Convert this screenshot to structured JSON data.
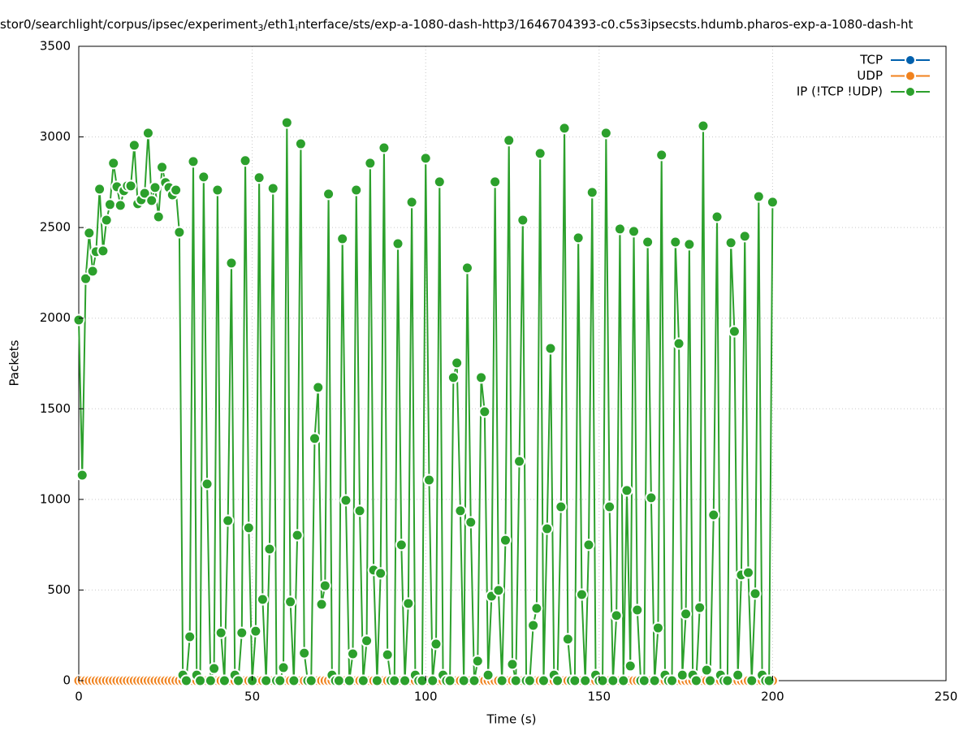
{
  "chart_data": {
    "type": "line",
    "title": [
      "stor0/searchlight/corpus/ipsec/experiment",
      "3",
      "/eth1",
      "i",
      "nterface/sts/exp-a-1080-dash-http3/1646704393-c0.c5s3ipsecsts.hdumb.pharos-exp-a-1080-dash-ht"
    ],
    "x_label": "Time (s)",
    "y_label": "Packets",
    "xlim": [
      0,
      250
    ],
    "xticks": [
      0,
      50,
      100,
      150,
      200,
      250
    ],
    "ylim": [
      0,
      3500
    ],
    "yticks": [
      0,
      500,
      1000,
      1500,
      2000,
      2500,
      3000,
      3500
    ],
    "grid": true,
    "legend": "top-right",
    "x": [
      0,
      1,
      2,
      3,
      4,
      5,
      6,
      7,
      8,
      9,
      10,
      11,
      12,
      13,
      14,
      15,
      16,
      17,
      18,
      19,
      20,
      21,
      22,
      23,
      24,
      25,
      26,
      27,
      28,
      29,
      30,
      31,
      32,
      33,
      34,
      35,
      36,
      37,
      38,
      39,
      40,
      41,
      42,
      43,
      44,
      45,
      46,
      47,
      48,
      49,
      50,
      51,
      52,
      53,
      54,
      55,
      56,
      57,
      58,
      59,
      60,
      61,
      62,
      63,
      64,
      65,
      66,
      67,
      68,
      69,
      70,
      71,
      72,
      73,
      74,
      75,
      76,
      77,
      78,
      79,
      80,
      81,
      82,
      83,
      84,
      85,
      86,
      87,
      88,
      89,
      90,
      91,
      92,
      93,
      94,
      95,
      96,
      97,
      98,
      99,
      100,
      101,
      102,
      103,
      104,
      105,
      106,
      107,
      108,
      109,
      110,
      111,
      112,
      113,
      114,
      115,
      116,
      117,
      118,
      119,
      120,
      121,
      122,
      123,
      124,
      125,
      126,
      127,
      128,
      129,
      130,
      131,
      132,
      133,
      134,
      135,
      136,
      137,
      138,
      139,
      140,
      141,
      142,
      143,
      144,
      145,
      146,
      147,
      148,
      149,
      150,
      151,
      152,
      153,
      154,
      155,
      156,
      157,
      158,
      159,
      160,
      161,
      162,
      163,
      164,
      165,
      166,
      167,
      168,
      169,
      170,
      171,
      172,
      173,
      174,
      175,
      176,
      177,
      178,
      179,
      180,
      181,
      182,
      183,
      184,
      185,
      186,
      187,
      188,
      189,
      190,
      191,
      192,
      193,
      194,
      195,
      196,
      197,
      198,
      199,
      200
    ],
    "series": [
      {
        "name": "TCP",
        "color": "#0060ad",
        "values": [
          0,
          0,
          0,
          0,
          0,
          0,
          0,
          0,
          0,
          0,
          0,
          0,
          0,
          0,
          0,
          0,
          0,
          0,
          0,
          0,
          0,
          0,
          0,
          0,
          0,
          0,
          0,
          0,
          0,
          0,
          0,
          0,
          0,
          0,
          0,
          0,
          0,
          0,
          0,
          0,
          0,
          0,
          0,
          0,
          0,
          0,
          0,
          0,
          0,
          0,
          0,
          0,
          0,
          0,
          0,
          0,
          0,
          0,
          0,
          0,
          0,
          0,
          0,
          0,
          0,
          0,
          0,
          0,
          0,
          0,
          0,
          0,
          0,
          0,
          0,
          0,
          0,
          0,
          0,
          0,
          0,
          0,
          0,
          0,
          0,
          0,
          0,
          0,
          0,
          0,
          0,
          0,
          0,
          0,
          0,
          0,
          0,
          0,
          0,
          0,
          0,
          0,
          0,
          0,
          0,
          0,
          0,
          0,
          0,
          0,
          0,
          0,
          0,
          0,
          0,
          0,
          0,
          0,
          0,
          0,
          0,
          0,
          0,
          0,
          0,
          0,
          0,
          0,
          0,
          0,
          0,
          0,
          0,
          0,
          0,
          0,
          0,
          0,
          0,
          0,
          0,
          0,
          0,
          0,
          0,
          0,
          0,
          0,
          0,
          0,
          0,
          0,
          0,
          0,
          0,
          0,
          0,
          0,
          0,
          0,
          0,
          0,
          0,
          0,
          0,
          0,
          0,
          0,
          0,
          0,
          0,
          0,
          0,
          0,
          0,
          0,
          0,
          0,
          0,
          0,
          0,
          0,
          0,
          0,
          0,
          0,
          0,
          0,
          0,
          0,
          0,
          0,
          0,
          0,
          0,
          0,
          0,
          0,
          0,
          0,
          0
        ]
      },
      {
        "name": "UDP",
        "color": "#f0821e",
        "values": [
          0,
          0,
          0,
          0,
          0,
          0,
          0,
          0,
          0,
          0,
          0,
          0,
          0,
          0,
          0,
          0,
          0,
          0,
          0,
          0,
          0,
          0,
          0,
          0,
          0,
          0,
          0,
          0,
          0,
          0,
          0,
          0,
          0,
          0,
          0,
          0,
          0,
          0,
          0,
          0,
          0,
          0,
          0,
          0,
          0,
          0,
          0,
          0,
          0,
          0,
          0,
          0,
          0,
          0,
          0,
          0,
          0,
          0,
          0,
          0,
          0,
          0,
          0,
          0,
          0,
          0,
          0,
          0,
          0,
          0,
          0,
          0,
          0,
          0,
          0,
          0,
          0,
          0,
          0,
          0,
          0,
          0,
          0,
          0,
          0,
          0,
          0,
          0,
          0,
          0,
          0,
          0,
          0,
          0,
          0,
          0,
          0,
          0,
          0,
          0,
          0,
          0,
          0,
          0,
          0,
          0,
          0,
          0,
          0,
          0,
          0,
          0,
          0,
          0,
          0,
          0,
          0,
          0,
          0,
          0,
          0,
          0,
          0,
          0,
          0,
          0,
          0,
          0,
          0,
          0,
          0,
          0,
          0,
          0,
          0,
          0,
          0,
          0,
          0,
          0,
          0,
          0,
          0,
          0,
          0,
          0,
          0,
          0,
          0,
          0,
          0,
          0,
          0,
          0,
          0,
          0,
          0,
          0,
          0,
          0,
          0,
          0,
          0,
          0,
          0,
          0,
          0,
          0,
          0,
          0,
          0,
          0,
          0,
          0,
          0,
          0,
          0,
          0,
          0,
          0,
          0,
          0,
          0,
          0,
          0,
          0,
          0,
          0,
          0,
          0,
          0,
          0,
          0,
          0,
          0,
          0,
          0,
          0,
          0,
          0,
          0
        ]
      },
      {
        "name": "IP (!TCP  !UDP)",
        "color": "#2ca02c",
        "values": [
          1990,
          1134,
          2218,
          2470,
          2259,
          2367,
          2712,
          2371,
          2541,
          2627,
          2855,
          2725,
          2622,
          2703,
          2730,
          2730,
          2954,
          2631,
          2653,
          2689,
          3021,
          2649,
          2721,
          2559,
          2833,
          2748,
          2721,
          2680,
          2707,
          2474,
          31,
          0,
          242,
          2864,
          31,
          0,
          2779,
          1085,
          0,
          67,
          2707,
          264,
          0,
          883,
          2304,
          31,
          0,
          264,
          2869,
          843,
          0,
          273,
          2775,
          448,
          0,
          726,
          2716,
          0,
          0,
          72,
          3079,
          435,
          0,
          802,
          2962,
          152,
          0,
          0,
          1336,
          1618,
          421,
          524,
          2685,
          31,
          0,
          0,
          2438,
          995,
          0,
          148,
          2707,
          937,
          0,
          220,
          2855,
          610,
          0,
          592,
          2940,
          143,
          0,
          0,
          2411,
          749,
          0,
          426,
          2640,
          31,
          0,
          0,
          2882,
          1107,
          0,
          202,
          2752,
          31,
          0,
          0,
          1672,
          1753,
          937,
          0,
          2277,
          874,
          0,
          108,
          1672,
          1484,
          31,
          466,
          2752,
          498,
          0,
          775,
          2981,
          90,
          0,
          1210,
          2541,
          0,
          0,
          305,
          399,
          2909,
          0,
          838,
          1833,
          31,
          0,
          959,
          3048,
          229,
          0,
          0,
          2443,
          475,
          0,
          749,
          2694,
          31,
          0,
          0,
          3021,
          959,
          0,
          359,
          2492,
          0,
          1049,
          81,
          2479,
          390,
          0,
          0,
          2420,
          1009,
          0,
          291,
          2900,
          31,
          0,
          0,
          2420,
          1860,
          31,
          368,
          2407,
          31,
          0,
          403,
          3061,
          58,
          0,
          914,
          2559,
          31,
          0,
          0,
          2416,
          1927,
          31,
          583,
          2452,
          596,
          0,
          480,
          2671,
          31,
          0,
          0,
          2640
        ]
      }
    ]
  }
}
